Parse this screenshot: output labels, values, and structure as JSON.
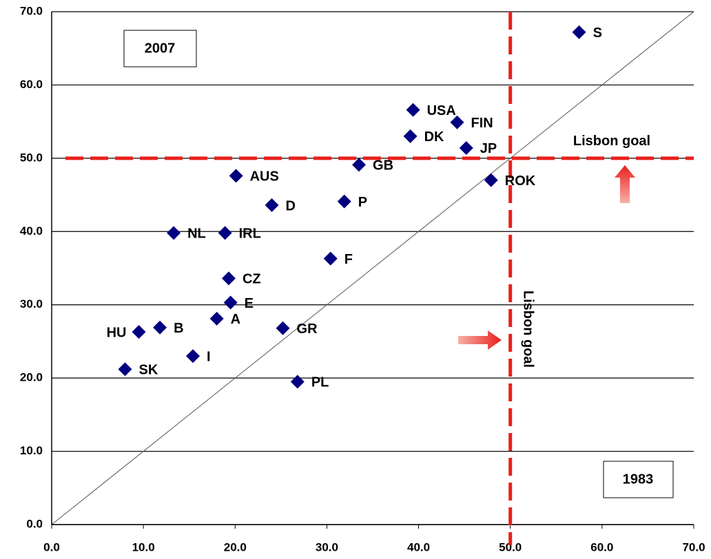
{
  "chart_data": {
    "type": "scatter",
    "x": [
      57.5,
      39.4,
      44.2,
      39.1,
      45.2,
      33.5,
      47.9,
      20.1,
      24.0,
      31.9,
      13.3,
      18.9,
      30.4,
      19.3,
      19.5,
      18.0,
      9.5,
      11.8,
      25.2,
      15.4,
      8.0,
      26.8
    ],
    "series": [
      {
        "color": "#000080",
        "values": [
          67.2,
          56.6,
          54.9,
          53.0,
          51.4,
          49.1,
          47.0,
          47.6,
          43.6,
          44.1,
          39.8,
          39.8,
          36.3,
          33.6,
          30.3,
          28.1,
          26.3,
          26.9,
          26.8,
          23.0,
          21.2,
          19.5
        ],
        "point_labels": [
          "S",
          "USA",
          "FIN",
          "DK",
          "JP",
          "GB",
          "ROK",
          "AUS",
          "D",
          "P",
          "NL",
          "IRL",
          "F",
          "CZ",
          "E",
          "A",
          "HU",
          "B",
          "GR",
          "I",
          "SK",
          "PL"
        ]
      }
    ],
    "xlim": [
      0,
      70
    ],
    "ylim": [
      0,
      70
    ],
    "xticks": [
      {
        "value": 0,
        "label": "0.0"
      },
      {
        "value": 10,
        "label": "10.0"
      },
      {
        "value": 20,
        "label": "20.0"
      },
      {
        "value": 30,
        "label": "30.0"
      },
      {
        "value": 40,
        "label": "40.0"
      },
      {
        "value": 50,
        "label": "50.0"
      },
      {
        "value": 60,
        "label": "60.0"
      },
      {
        "value": 70,
        "label": "70.0"
      }
    ],
    "yticks": [
      {
        "value": 0,
        "label": "0.0"
      },
      {
        "value": 10,
        "label": "10.0"
      },
      {
        "value": 20,
        "label": "20.0"
      },
      {
        "value": 30,
        "label": "30.0"
      },
      {
        "value": 40,
        "label": "40.0"
      },
      {
        "value": 50,
        "label": "50.0"
      },
      {
        "value": 60,
        "label": "60.0"
      },
      {
        "value": 70,
        "label": "70.0"
      }
    ],
    "grid": true,
    "reference_lines": [
      {
        "axis": "y",
        "value": 50,
        "label": "Lisbon goal",
        "color": "#e8201c"
      },
      {
        "axis": "x",
        "value": 50,
        "label": "Lisbon goal",
        "color": "#e8201c"
      }
    ],
    "annotations": [
      "2007",
      "1983"
    ]
  }
}
